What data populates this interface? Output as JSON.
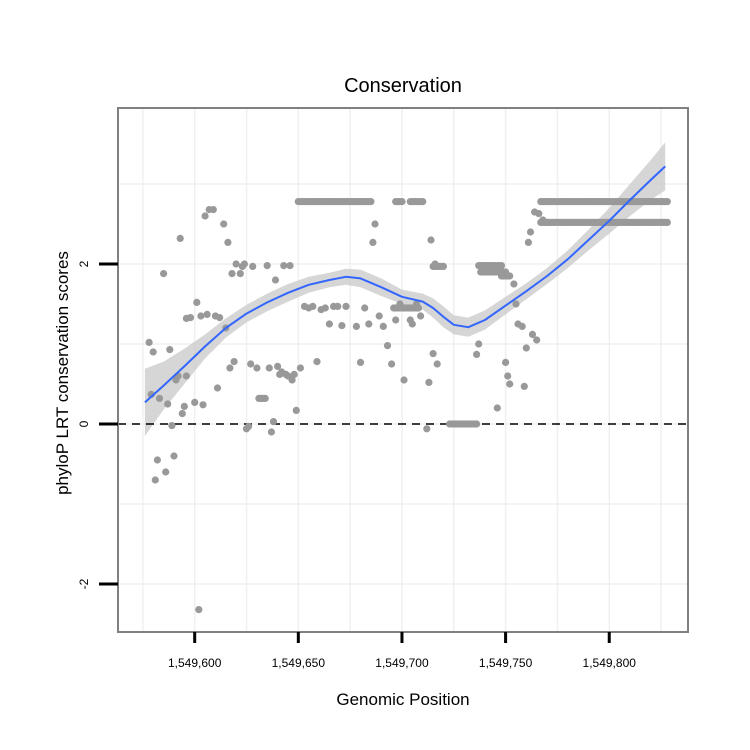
{
  "chart_data": {
    "type": "scatter",
    "title": "Conservation",
    "xlabel": "Genomic Position",
    "ylabel": "phyloP LRT conservation scores",
    "xlim": [
      1549563,
      1549838
    ],
    "ylim": [
      -2.6,
      3.95
    ],
    "x_ticks": [
      1549600,
      1549650,
      1549700,
      1549750,
      1549800
    ],
    "x_tick_labels": [
      "1,549,600",
      "1,549,650",
      "1,549,700",
      "1,549,750",
      "1,549,800"
    ],
    "y_ticks": [
      -2,
      0,
      2
    ],
    "y_tick_labels": [
      "-2",
      "0",
      "2"
    ],
    "reference_line": {
      "y": 0,
      "style": "dashed"
    },
    "grid": true,
    "colors": {
      "points": "#999999",
      "smooth_line": "#3366ff",
      "ribbon": "#cccccc",
      "panel_border": "#808080",
      "grid": "#f0f0f0",
      "ref_line": "#000000"
    },
    "points": [
      {
        "x": 1549578,
        "y": 1.02
      },
      {
        "x": 1549579,
        "y": 0.37
      },
      {
        "x": 1549580,
        "y": 0.9
      },
      {
        "x": 1549581,
        "y": -0.7
      },
      {
        "x": 1549582,
        "y": -0.45
      },
      {
        "x": 1549583,
        "y": 0.32
      },
      {
        "x": 1549585,
        "y": 1.88
      },
      {
        "x": 1549586,
        "y": -0.6
      },
      {
        "x": 1549587,
        "y": 0.25
      },
      {
        "x": 1549588,
        "y": 0.93
      },
      {
        "x": 1549589,
        "y": -0.02
      },
      {
        "x": 1549590,
        "y": -0.4
      },
      {
        "x": 1549591,
        "y": 0.55
      },
      {
        "x": 1549592,
        "y": 0.6
      },
      {
        "x": 1549593,
        "y": 2.32
      },
      {
        "x": 1549594,
        "y": 0.13
      },
      {
        "x": 1549595,
        "y": 0.22
      },
      {
        "x": 1549596,
        "y": 0.6
      },
      {
        "x": 1549596,
        "y": 1.32
      },
      {
        "x": 1549598,
        "y": 1.33
      },
      {
        "x": 1549600,
        "y": 0.27
      },
      {
        "x": 1549601,
        "y": 1.52
      },
      {
        "x": 1549602,
        "y": -2.32
      },
      {
        "x": 1549603,
        "y": 1.35
      },
      {
        "x": 1549604,
        "y": 0.24
      },
      {
        "x": 1549605,
        "y": 2.6
      },
      {
        "x": 1549606,
        "y": 1.37
      },
      {
        "x": 1549607,
        "y": 2.68
      },
      {
        "x": 1549609,
        "y": 2.68
      },
      {
        "x": 1549610,
        "y": 1.35
      },
      {
        "x": 1549611,
        "y": 0.45
      },
      {
        "x": 1549612,
        "y": 1.33
      },
      {
        "x": 1549614,
        "y": 2.5
      },
      {
        "x": 1549615,
        "y": 1.2
      },
      {
        "x": 1549616,
        "y": 2.27
      },
      {
        "x": 1549617,
        "y": 0.7
      },
      {
        "x": 1549618,
        "y": 1.88
      },
      {
        "x": 1549619,
        "y": 0.78
      },
      {
        "x": 1549620,
        "y": 2.0
      },
      {
        "x": 1549622,
        "y": 1.88
      },
      {
        "x": 1549623,
        "y": 1.97
      },
      {
        "x": 1549624,
        "y": 2.0
      },
      {
        "x": 1549625,
        "y": -0.06
      },
      {
        "x": 1549626,
        "y": -0.03
      },
      {
        "x": 1549627,
        "y": 0.75
      },
      {
        "x": 1549628,
        "y": 1.97
      },
      {
        "x": 1549630,
        "y": 0.7
      },
      {
        "x": 1549631,
        "y": 0.32
      },
      {
        "x": 1549632,
        "y": 0.32
      },
      {
        "x": 1549633,
        "y": 0.32
      },
      {
        "x": 1549634,
        "y": 0.32
      },
      {
        "x": 1549635,
        "y": 1.98
      },
      {
        "x": 1549636,
        "y": 0.7
      },
      {
        "x": 1549637,
        "y": -0.1
      },
      {
        "x": 1549638,
        "y": 0.03
      },
      {
        "x": 1549639,
        "y": 1.8
      },
      {
        "x": 1549640,
        "y": 0.72
      },
      {
        "x": 1549641,
        "y": 0.62
      },
      {
        "x": 1549642,
        "y": 0.65
      },
      {
        "x": 1549643,
        "y": 1.98
      },
      {
        "x": 1549644,
        "y": 0.62
      },
      {
        "x": 1549645,
        "y": 0.6
      },
      {
        "x": 1549646,
        "y": 1.98
      },
      {
        "x": 1549647,
        "y": 0.55
      },
      {
        "x": 1549648,
        "y": 0.62
      },
      {
        "x": 1549649,
        "y": 0.17
      },
      {
        "x": 1549651,
        "y": 0.7
      },
      {
        "x": 1549653,
        "y": 1.47
      },
      {
        "x": 1549655,
        "y": 1.45
      },
      {
        "x": 1549657,
        "y": 1.47
      },
      {
        "x": 1549659,
        "y": 0.78
      },
      {
        "x": 1549661,
        "y": 1.43
      },
      {
        "x": 1549663,
        "y": 1.45
      },
      {
        "x": 1549665,
        "y": 1.25
      },
      {
        "x": 1549667,
        "y": 1.47
      },
      {
        "x": 1549669,
        "y": 1.47
      },
      {
        "x": 1549671,
        "y": 1.23
      },
      {
        "x": 1549673,
        "y": 1.47
      },
      {
        "x": 1549676,
        "y": 2.78
      },
      {
        "x": 1549678,
        "y": 1.22
      },
      {
        "x": 1549680,
        "y": 0.77
      },
      {
        "x": 1549682,
        "y": 1.45
      },
      {
        "x": 1549684,
        "y": 1.25
      },
      {
        "x": 1549686,
        "y": 2.27
      },
      {
        "x": 1549687,
        "y": 2.5
      },
      {
        "x": 1549689,
        "y": 1.35
      },
      {
        "x": 1549691,
        "y": 1.22
      },
      {
        "x": 1549693,
        "y": 0.98
      },
      {
        "x": 1549695,
        "y": 0.75
      },
      {
        "x": 1549697,
        "y": 1.3
      },
      {
        "x": 1549699,
        "y": 1.5
      },
      {
        "x": 1549701,
        "y": 0.55
      },
      {
        "x": 1549704,
        "y": 1.3
      },
      {
        "x": 1549705,
        "y": 1.25
      },
      {
        "x": 1549707,
        "y": 1.5
      },
      {
        "x": 1549709,
        "y": 1.35
      },
      {
        "x": 1549712,
        "y": -0.06
      },
      {
        "x": 1549713,
        "y": 0.52
      },
      {
        "x": 1549714,
        "y": 2.3
      },
      {
        "x": 1549715,
        "y": 0.88
      },
      {
        "x": 1549716,
        "y": 2.0
      },
      {
        "x": 1549717,
        "y": 0.75
      },
      {
        "x": 1549736,
        "y": 0.87
      },
      {
        "x": 1549737,
        "y": 1.0
      },
      {
        "x": 1549746,
        "y": 0.2
      },
      {
        "x": 1549750,
        "y": 0.77
      },
      {
        "x": 1549751,
        "y": 0.6
      },
      {
        "x": 1549752,
        "y": 0.5
      },
      {
        "x": 1549754,
        "y": 1.75
      },
      {
        "x": 1549755,
        "y": 1.5
      },
      {
        "x": 1549756,
        "y": 1.25
      },
      {
        "x": 1549758,
        "y": 1.22
      },
      {
        "x": 1549759,
        "y": 0.47
      },
      {
        "x": 1549760,
        "y": 0.95
      },
      {
        "x": 1549761,
        "y": 2.27
      },
      {
        "x": 1549762,
        "y": 2.4
      },
      {
        "x": 1549763,
        "y": 1.12
      },
      {
        "x": 1549765,
        "y": 1.05
      },
      {
        "x": 1549764,
        "y": 2.65
      },
      {
        "x": 1549766,
        "y": 2.63
      },
      {
        "x": 1549768,
        "y": 2.55
      },
      {
        "x": 1549770,
        "y": 2.52
      }
    ],
    "point_runs": [
      {
        "x_start": 1549650,
        "x_end": 1549685,
        "step": 1,
        "y": 2.78
      },
      {
        "x_start": 1549697,
        "x_end": 1549700,
        "step": 1,
        "y": 2.78
      },
      {
        "x_start": 1549704,
        "x_end": 1549710,
        "step": 1,
        "y": 2.78
      },
      {
        "x_start": 1549696,
        "x_end": 1549708,
        "step": 1,
        "y": 1.45
      },
      {
        "x_start": 1549715,
        "x_end": 1549720,
        "step": 1,
        "y": 1.97
      },
      {
        "x_start": 1549723,
        "x_end": 1549736,
        "step": 1,
        "y": 0.0
      },
      {
        "x_start": 1549737,
        "x_end": 1549748,
        "step": 1,
        "y": 1.98
      },
      {
        "x_start": 1549738,
        "x_end": 1549750,
        "step": 1,
        "y": 1.9
      },
      {
        "x_start": 1549748,
        "x_end": 1549752,
        "step": 1,
        "y": 1.85
      },
      {
        "x_start": 1549767,
        "x_end": 1549828,
        "step": 1,
        "y": 2.78
      },
      {
        "x_start": 1549767,
        "x_end": 1549828,
        "step": 1,
        "y": 2.52
      }
    ],
    "smooth": {
      "x": [
        1549576,
        1549585,
        1549595,
        1549605,
        1549615,
        1549625,
        1549635,
        1549645,
        1549655,
        1549665,
        1549673,
        1549680,
        1549690,
        1549700,
        1549710,
        1549715,
        1549720,
        1549725,
        1549732,
        1549740,
        1549750,
        1549760,
        1549770,
        1549780,
        1549790,
        1549800,
        1549810,
        1549820,
        1549827
      ],
      "y": [
        0.27,
        0.48,
        0.72,
        0.97,
        1.2,
        1.38,
        1.52,
        1.64,
        1.74,
        1.8,
        1.84,
        1.82,
        1.71,
        1.59,
        1.53,
        1.45,
        1.34,
        1.24,
        1.21,
        1.3,
        1.48,
        1.66,
        1.85,
        2.06,
        2.3,
        2.54,
        2.8,
        3.05,
        3.22
      ],
      "lower": [
        -0.15,
        0.18,
        0.5,
        0.82,
        1.08,
        1.27,
        1.41,
        1.53,
        1.64,
        1.71,
        1.74,
        1.71,
        1.6,
        1.5,
        1.43,
        1.33,
        1.21,
        1.12,
        1.09,
        1.18,
        1.37,
        1.56,
        1.75,
        1.95,
        2.17,
        2.38,
        2.6,
        2.8,
        2.92
      ],
      "upper": [
        0.69,
        0.78,
        0.94,
        1.12,
        1.32,
        1.49,
        1.63,
        1.75,
        1.84,
        1.89,
        1.94,
        1.93,
        1.82,
        1.68,
        1.63,
        1.57,
        1.47,
        1.36,
        1.33,
        1.42,
        1.59,
        1.76,
        1.95,
        2.17,
        2.43,
        2.7,
        3.0,
        3.3,
        3.52
      ]
    }
  }
}
